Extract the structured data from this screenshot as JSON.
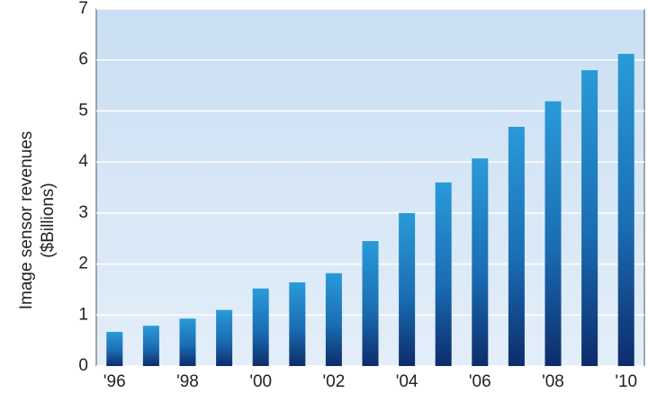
{
  "chart_data": {
    "type": "bar",
    "ylabel": [
      "Image sensor revenues",
      "($Billions)"
    ],
    "categories": [
      "'96",
      null,
      "'98",
      null,
      "'00",
      null,
      "'02",
      null,
      "'04",
      null,
      "'06",
      null,
      "'08",
      null,
      "'10"
    ],
    "values": [
      0.67,
      0.79,
      0.93,
      1.1,
      1.52,
      1.64,
      1.82,
      2.45,
      3.0,
      3.6,
      4.07,
      4.69,
      5.19,
      5.8,
      6.12
    ],
    "color": "#1a6db4",
    "ylim": [
      0,
      7
    ],
    "yticks": [
      0,
      1,
      2,
      3,
      4,
      5,
      6,
      7
    ],
    "grid": true
  }
}
